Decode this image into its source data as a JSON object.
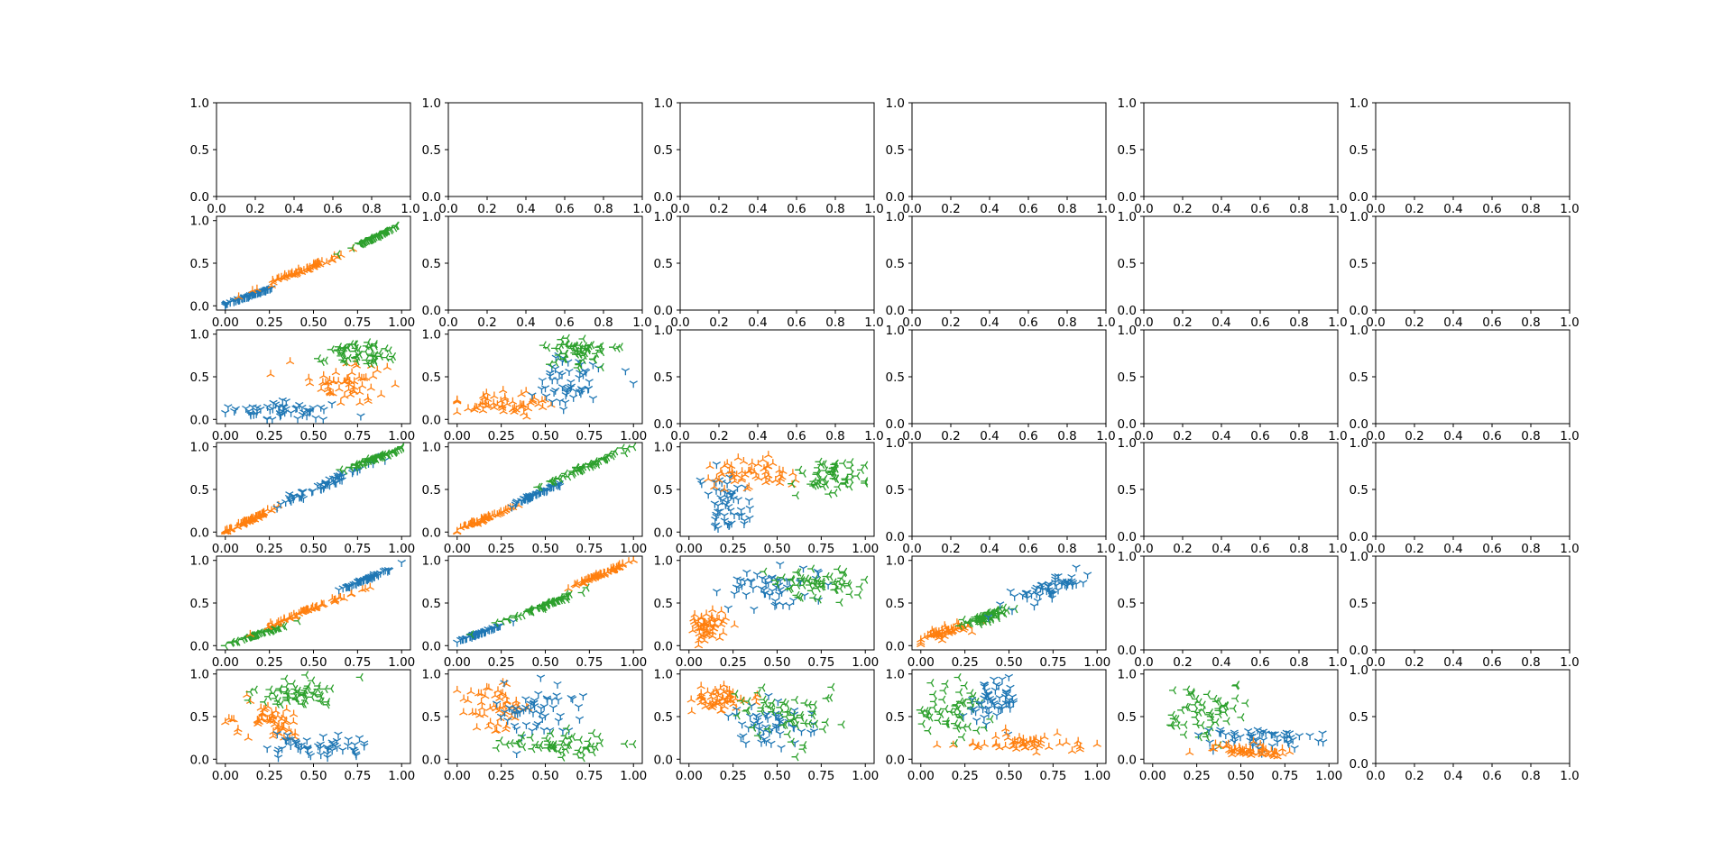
{
  "chart_data": {
    "type": "scatter",
    "layout": "6x6 grid, lower triangle populated",
    "grid": false,
    "colors": {
      "blue": "#1f77b4",
      "orange": "#ff7f0e",
      "green": "#2ca02c"
    },
    "marker_icons": {
      "blue": "tri-down-icon",
      "orange": "tri-up-icon",
      "green": "tri-left-icon"
    },
    "default_ticks": [
      0.0,
      0.2,
      0.4,
      0.6,
      0.8,
      1.0
    ],
    "default_tick_labels": [
      "0.0",
      "0.2",
      "0.4",
      "0.6",
      "0.8",
      "1.0"
    ],
    "data_xticks": [
      0.0,
      0.25,
      0.5,
      0.75,
      1.0
    ],
    "data_xtick_labels": [
      "0.00",
      "0.25",
      "0.50",
      "0.75",
      "1.00"
    ],
    "data_yticks": [
      0.0,
      0.5,
      1.0
    ],
    "data_ytick_labels": [
      "0.0",
      "0.5",
      "1.0"
    ],
    "empty_ylim": [
      0,
      1
    ],
    "data_xlim": [
      -0.05,
      1.05
    ],
    "data_ylim": [
      -0.05,
      1.05
    ],
    "points_per_cluster": 55,
    "panels": [
      {
        "row": 1,
        "col": 0,
        "clusters": [
          {
            "color": "blue",
            "cx": 0.14,
            "cy": 0.12,
            "sx": 0.07,
            "sy": 0.05
          },
          {
            "color": "orange",
            "cx": 0.44,
            "cy": 0.42,
            "sx": 0.14,
            "sy": 0.12
          },
          {
            "color": "green",
            "cx": 0.84,
            "cy": 0.8,
            "sx": 0.07,
            "sy": 0.07
          }
        ],
        "corr": 0.98
      },
      {
        "row": 2,
        "col": 0,
        "clusters": [
          {
            "color": "blue",
            "cx": 0.32,
            "cy": 0.11,
            "sx": 0.17,
            "sy": 0.06
          },
          {
            "color": "orange",
            "cx": 0.7,
            "cy": 0.42,
            "sx": 0.13,
            "sy": 0.14
          },
          {
            "color": "green",
            "cx": 0.74,
            "cy": 0.8,
            "sx": 0.11,
            "sy": 0.07
          }
        ],
        "corr": 0.0
      },
      {
        "row": 2,
        "col": 1,
        "clusters": [
          {
            "color": "orange",
            "cx": 0.26,
            "cy": 0.18,
            "sx": 0.14,
            "sy": 0.06
          },
          {
            "color": "blue",
            "cx": 0.64,
            "cy": 0.42,
            "sx": 0.12,
            "sy": 0.15
          },
          {
            "color": "green",
            "cx": 0.7,
            "cy": 0.8,
            "sx": 0.1,
            "sy": 0.08
          }
        ],
        "corr": 0.0
      },
      {
        "row": 3,
        "col": 0,
        "clusters": [
          {
            "color": "orange",
            "cx": 0.14,
            "cy": 0.14,
            "sx": 0.08,
            "sy": 0.08
          },
          {
            "color": "blue",
            "cx": 0.54,
            "cy": 0.54,
            "sx": 0.16,
            "sy": 0.16
          },
          {
            "color": "green",
            "cx": 0.84,
            "cy": 0.86,
            "sx": 0.09,
            "sy": 0.07
          }
        ],
        "corr": 0.96
      },
      {
        "row": 3,
        "col": 1,
        "clusters": [
          {
            "color": "orange",
            "cx": 0.16,
            "cy": 0.16,
            "sx": 0.08,
            "sy": 0.07
          },
          {
            "color": "blue",
            "cx": 0.44,
            "cy": 0.44,
            "sx": 0.1,
            "sy": 0.09
          },
          {
            "color": "green",
            "cx": 0.74,
            "cy": 0.78,
            "sx": 0.12,
            "sy": 0.11
          }
        ],
        "corr": 0.97
      },
      {
        "row": 3,
        "col": 2,
        "clusters": [
          {
            "color": "blue",
            "cx": 0.2,
            "cy": 0.36,
            "sx": 0.07,
            "sy": 0.18
          },
          {
            "color": "orange",
            "cx": 0.34,
            "cy": 0.7,
            "sx": 0.14,
            "sy": 0.1
          },
          {
            "color": "green",
            "cx": 0.8,
            "cy": 0.66,
            "sx": 0.1,
            "sy": 0.1
          }
        ],
        "corr": 0.0
      },
      {
        "row": 4,
        "col": 0,
        "clusters": [
          {
            "color": "green",
            "cx": 0.16,
            "cy": 0.12,
            "sx": 0.09,
            "sy": 0.06
          },
          {
            "color": "orange",
            "cx": 0.48,
            "cy": 0.42,
            "sx": 0.12,
            "sy": 0.1
          },
          {
            "color": "blue",
            "cx": 0.82,
            "cy": 0.8,
            "sx": 0.09,
            "sy": 0.08
          }
        ],
        "corr": 0.98
      },
      {
        "row": 4,
        "col": 1,
        "clusters": [
          {
            "color": "blue",
            "cx": 0.12,
            "cy": 0.14,
            "sx": 0.07,
            "sy": 0.05
          },
          {
            "color": "green",
            "cx": 0.48,
            "cy": 0.46,
            "sx": 0.12,
            "sy": 0.1
          },
          {
            "color": "orange",
            "cx": 0.82,
            "cy": 0.84,
            "sx": 0.09,
            "sy": 0.08
          }
        ],
        "corr": 0.97
      },
      {
        "row": 4,
        "col": 2,
        "clusters": [
          {
            "color": "orange",
            "cx": 0.1,
            "cy": 0.24,
            "sx": 0.05,
            "sy": 0.12
          },
          {
            "color": "blue",
            "cx": 0.46,
            "cy": 0.66,
            "sx": 0.14,
            "sy": 0.12
          },
          {
            "color": "green",
            "cx": 0.74,
            "cy": 0.74,
            "sx": 0.13,
            "sy": 0.09
          }
        ],
        "corr": 0.3
      },
      {
        "row": 4,
        "col": 3,
        "clusters": [
          {
            "color": "orange",
            "cx": 0.14,
            "cy": 0.16,
            "sx": 0.08,
            "sy": 0.06
          },
          {
            "color": "green",
            "cx": 0.38,
            "cy": 0.34,
            "sx": 0.06,
            "sy": 0.06
          },
          {
            "color": "blue",
            "cx": 0.72,
            "cy": 0.66,
            "sx": 0.13,
            "sy": 0.14
          }
        ],
        "corr": 0.7
      },
      {
        "row": 5,
        "col": 0,
        "clusters": [
          {
            "color": "orange",
            "cx": 0.24,
            "cy": 0.42,
            "sx": 0.12,
            "sy": 0.12
          },
          {
            "color": "blue",
            "cx": 0.52,
            "cy": 0.14,
            "sx": 0.16,
            "sy": 0.07
          },
          {
            "color": "green",
            "cx": 0.4,
            "cy": 0.78,
            "sx": 0.14,
            "sy": 0.08
          }
        ],
        "corr": 0.0
      },
      {
        "row": 5,
        "col": 1,
        "clusters": [
          {
            "color": "orange",
            "cx": 0.22,
            "cy": 0.58,
            "sx": 0.09,
            "sy": 0.15
          },
          {
            "color": "blue",
            "cx": 0.48,
            "cy": 0.56,
            "sx": 0.12,
            "sy": 0.18
          },
          {
            "color": "green",
            "cx": 0.56,
            "cy": 0.16,
            "sx": 0.15,
            "sy": 0.07
          }
        ],
        "corr": 0.0
      },
      {
        "row": 5,
        "col": 2,
        "clusters": [
          {
            "color": "orange",
            "cx": 0.18,
            "cy": 0.7,
            "sx": 0.09,
            "sy": 0.08
          },
          {
            "color": "blue",
            "cx": 0.46,
            "cy": 0.4,
            "sx": 0.11,
            "sy": 0.14
          },
          {
            "color": "green",
            "cx": 0.54,
            "cy": 0.54,
            "sx": 0.16,
            "sy": 0.17
          }
        ],
        "corr": 0.0
      },
      {
        "row": 5,
        "col": 3,
        "clusters": [
          {
            "color": "green",
            "cx": 0.18,
            "cy": 0.58,
            "sx": 0.1,
            "sy": 0.18
          },
          {
            "color": "blue",
            "cx": 0.42,
            "cy": 0.7,
            "sx": 0.08,
            "sy": 0.14
          },
          {
            "color": "orange",
            "cx": 0.58,
            "cy": 0.18,
            "sx": 0.18,
            "sy": 0.07
          }
        ],
        "corr": 0.0
      },
      {
        "row": 5,
        "col": 4,
        "clusters": [
          {
            "color": "green",
            "cx": 0.3,
            "cy": 0.56,
            "sx": 0.12,
            "sy": 0.15
          },
          {
            "color": "blue",
            "cx": 0.6,
            "cy": 0.24,
            "sx": 0.18,
            "sy": 0.07
          },
          {
            "color": "orange",
            "cx": 0.56,
            "cy": 0.1,
            "sx": 0.13,
            "sy": 0.04
          }
        ],
        "corr": 0.0
      }
    ]
  }
}
